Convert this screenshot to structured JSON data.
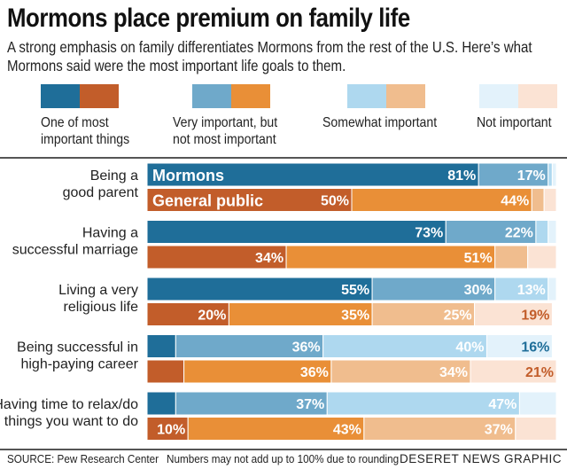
{
  "title": "Mormons place premium on family life",
  "subtitle": "A strong emphasis on family differentiates Mormons from the rest of the U.S. Here’s what Mormons said were the most important life goals to them.",
  "legend": [
    {
      "line1": "One of most",
      "line2": "important things"
    },
    {
      "line1": "Very important, but",
      "line2": "not most important"
    },
    {
      "line1": "Somewhat important",
      "line2": ""
    },
    {
      "line1": "Not important",
      "line2": ""
    }
  ],
  "colors": {
    "mormons": [
      "#1f6e99",
      "#6fa9ca",
      "#aed8ef",
      "#e3f2fb"
    ],
    "general": [
      "#c25d2a",
      "#e98f37",
      "#f0bd8e",
      "#fbe3d4"
    ]
  },
  "footer": {
    "source": "SOURCE: Pew Research Center",
    "note": "Numbers may not add up to 100% due to rounding",
    "credit": "DESERET NEWS GRAPHIC"
  },
  "chart_data": {
    "type": "bar",
    "stacked": true,
    "orientation": "horizontal",
    "categories": [
      [
        "Being a",
        "good parent"
      ],
      [
        "Having a",
        "successful marriage"
      ],
      [
        "Living a very",
        "religious life"
      ],
      [
        "Being successful in",
        "high-paying career"
      ],
      [
        "Having time to relax/do",
        "things you want to do"
      ]
    ],
    "series_labels": [
      "Mormons",
      "General public"
    ],
    "segments": [
      "One of most important things",
      "Very important, but not most important",
      "Somewhat important",
      "Not important"
    ],
    "mormons": [
      [
        81,
        17,
        1,
        1
      ],
      [
        73,
        22,
        3,
        2
      ],
      [
        55,
        30,
        13,
        2
      ],
      [
        7,
        36,
        40,
        16
      ],
      [
        7,
        37,
        47,
        9
      ]
    ],
    "general": [
      [
        50,
        44,
        3,
        3
      ],
      [
        34,
        51,
        8,
        7
      ],
      [
        20,
        35,
        25,
        19
      ],
      [
        9,
        36,
        34,
        21
      ],
      [
        10,
        43,
        37,
        10
      ]
    ],
    "labels_mormons": [
      [
        "81%",
        "17%",
        "",
        ""
      ],
      [
        "73%",
        "22%",
        "",
        ""
      ],
      [
        "55%",
        "30%",
        "13%",
        ""
      ],
      [
        "",
        "36%",
        "40%",
        "16%"
      ],
      [
        "",
        "37%",
        "47%",
        ""
      ]
    ],
    "labels_general": [
      [
        "50%",
        "44%",
        "",
        ""
      ],
      [
        "34%",
        "51%",
        "",
        ""
      ],
      [
        "20%",
        "35%",
        "25%",
        "19%"
      ],
      [
        "",
        "36%",
        "34%",
        "21%"
      ],
      [
        "10%",
        "43%",
        "37%",
        ""
      ]
    ],
    "xlim": [
      0,
      100
    ]
  }
}
